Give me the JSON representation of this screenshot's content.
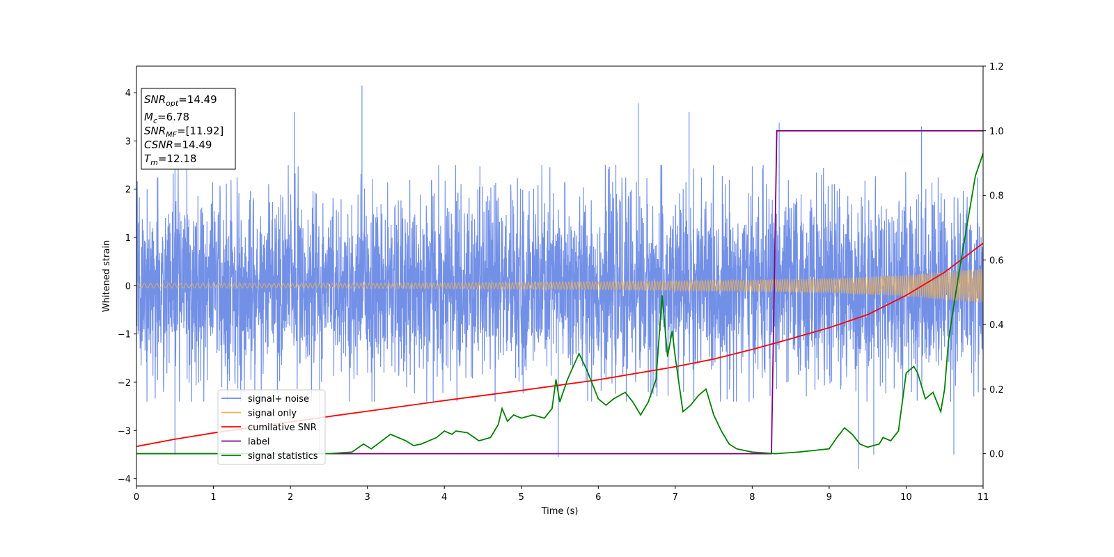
{
  "chart_data": {
    "type": "line",
    "xlabel": "Time (s)",
    "ylabel": "Whitened strain",
    "xlim": [
      0,
      11
    ],
    "ylim": [
      -4.15,
      4.55
    ],
    "y2lim": [
      -0.1,
      1.2
    ],
    "x_ticks": [
      0,
      1,
      2,
      3,
      4,
      5,
      6,
      7,
      8,
      9,
      10,
      11
    ],
    "y_ticks": [
      -4,
      -3,
      -2,
      -1,
      0,
      1,
      2,
      3,
      4
    ],
    "y_tick_labels": [
      "−4",
      "−3",
      "−2",
      "−1",
      "0",
      "1",
      "2",
      "3",
      "4"
    ],
    "y2_ticks": [
      0.0,
      0.2,
      0.4,
      0.6,
      0.8,
      1.0,
      1.2
    ],
    "y2_tick_labels": [
      "0.0",
      "0.2",
      "0.4",
      "0.6",
      "0.8",
      "1.0",
      "1.2"
    ],
    "grid": false,
    "legend_position": "lower-left",
    "legend": [
      "signal+ noise",
      "signal only",
      "cumilative SNR",
      "label",
      "signal statistics"
    ],
    "colors": {
      "noise": "#6b8ae6",
      "signal": "#f5b14a",
      "cumulative_snr": "#ff0000",
      "label": "#800080",
      "statistics": "#008000"
    },
    "series": [
      {
        "name": "signal+ noise",
        "axis": "left",
        "description_of_shape": "dense noise envelope",
        "envelope_upper": [
          [
            0,
            2.2
          ],
          [
            11,
            2.2
          ]
        ],
        "envelope_lower": [
          [
            0,
            -2.0
          ],
          [
            11,
            -2.0
          ]
        ],
        "peaks": [
          [
            0.5,
            3.0
          ],
          [
            2.05,
            3.6
          ],
          [
            2.93,
            4.15
          ],
          [
            6.52,
            3.78
          ],
          [
            7.18,
            3.6
          ],
          [
            8.35,
            3.38
          ],
          [
            10.2,
            3.3
          ]
        ],
        "troughs": [
          [
            0.5,
            -3.5
          ],
          [
            2.38,
            -3.5
          ],
          [
            5.48,
            -3.55
          ],
          [
            9.38,
            -3.8
          ],
          [
            9.58,
            -3.5
          ],
          [
            10.62,
            -3.5
          ]
        ]
      },
      {
        "name": "signal only",
        "axis": "left",
        "amplitude": [
          [
            0,
            0.05
          ],
          [
            2,
            0.05
          ],
          [
            4,
            0.06
          ],
          [
            6,
            0.08
          ],
          [
            8,
            0.12
          ],
          [
            9,
            0.15
          ],
          [
            10,
            0.22
          ],
          [
            11,
            0.36
          ]
        ]
      },
      {
        "name": "cumilative SNR",
        "axis": "left",
        "points": [
          [
            0,
            -3.33
          ],
          [
            0.5,
            -3.18
          ],
          [
            1,
            -3.05
          ],
          [
            2,
            -2.82
          ],
          [
            3,
            -2.6
          ],
          [
            4,
            -2.38
          ],
          [
            5,
            -2.17
          ],
          [
            6,
            -1.95
          ],
          [
            7,
            -1.68
          ],
          [
            7.5,
            -1.52
          ],
          [
            8,
            -1.32
          ],
          [
            8.5,
            -1.1
          ],
          [
            9,
            -0.87
          ],
          [
            9.5,
            -0.6
          ],
          [
            10,
            -0.2
          ],
          [
            10.5,
            0.28
          ],
          [
            11,
            0.88
          ]
        ]
      },
      {
        "name": "label",
        "axis": "right",
        "points": [
          [
            0,
            0.0
          ],
          [
            8.25,
            0.0
          ],
          [
            8.32,
            1.0
          ],
          [
            11,
            1.0
          ]
        ]
      },
      {
        "name": "signal statistics",
        "axis": "right",
        "points": [
          [
            0,
            0.0
          ],
          [
            2.5,
            0.0
          ],
          [
            2.8,
            0.005
          ],
          [
            2.95,
            0.03
          ],
          [
            3.05,
            0.015
          ],
          [
            3.3,
            0.06
          ],
          [
            3.5,
            0.04
          ],
          [
            3.6,
            0.025
          ],
          [
            3.7,
            0.03
          ],
          [
            3.9,
            0.05
          ],
          [
            4.0,
            0.07
          ],
          [
            4.1,
            0.06
          ],
          [
            4.15,
            0.07
          ],
          [
            4.3,
            0.065
          ],
          [
            4.45,
            0.04
          ],
          [
            4.6,
            0.05
          ],
          [
            4.7,
            0.09
          ],
          [
            4.75,
            0.14
          ],
          [
            4.82,
            0.1
          ],
          [
            4.9,
            0.12
          ],
          [
            5.0,
            0.11
          ],
          [
            5.15,
            0.12
          ],
          [
            5.3,
            0.11
          ],
          [
            5.4,
            0.14
          ],
          [
            5.45,
            0.23
          ],
          [
            5.5,
            0.16
          ],
          [
            5.6,
            0.23
          ],
          [
            5.75,
            0.31
          ],
          [
            5.85,
            0.26
          ],
          [
            6.0,
            0.17
          ],
          [
            6.1,
            0.15
          ],
          [
            6.2,
            0.17
          ],
          [
            6.35,
            0.19
          ],
          [
            6.45,
            0.16
          ],
          [
            6.55,
            0.12
          ],
          [
            6.65,
            0.16
          ],
          [
            6.75,
            0.23
          ],
          [
            6.83,
            0.49
          ],
          [
            6.9,
            0.3
          ],
          [
            6.96,
            0.38
          ],
          [
            7.0,
            0.3
          ],
          [
            7.1,
            0.13
          ],
          [
            7.2,
            0.15
          ],
          [
            7.3,
            0.18
          ],
          [
            7.4,
            0.2
          ],
          [
            7.45,
            0.16
          ],
          [
            7.5,
            0.12
          ],
          [
            7.6,
            0.07
          ],
          [
            7.7,
            0.03
          ],
          [
            7.8,
            0.015
          ],
          [
            8.0,
            0.005
          ],
          [
            8.3,
            0.0
          ],
          [
            8.6,
            0.005
          ],
          [
            8.8,
            0.01
          ],
          [
            9.0,
            0.015
          ],
          [
            9.1,
            0.05
          ],
          [
            9.2,
            0.08
          ],
          [
            9.3,
            0.06
          ],
          [
            9.4,
            0.03
          ],
          [
            9.5,
            0.02
          ],
          [
            9.65,
            0.03
          ],
          [
            9.7,
            0.05
          ],
          [
            9.8,
            0.04
          ],
          [
            9.9,
            0.07
          ],
          [
            10.0,
            0.25
          ],
          [
            10.1,
            0.27
          ],
          [
            10.15,
            0.25
          ],
          [
            10.25,
            0.17
          ],
          [
            10.35,
            0.19
          ],
          [
            10.45,
            0.13
          ],
          [
            10.5,
            0.2
          ],
          [
            10.55,
            0.35
          ],
          [
            10.6,
            0.43
          ],
          [
            10.7,
            0.58
          ],
          [
            10.8,
            0.72
          ],
          [
            10.9,
            0.86
          ],
          [
            11.0,
            0.93
          ]
        ]
      }
    ],
    "annotation": {
      "lines": [
        {
          "sym": "SNR",
          "sub": "opt",
          "val": "=14.49"
        },
        {
          "sym": "M",
          "sub": "c",
          "val": "=6.78"
        },
        {
          "sym": "SNR",
          "sub": "MF",
          "val": "=[11.92]"
        },
        {
          "sym": "CSNR",
          "sub": "",
          "val": "=14.49"
        },
        {
          "sym": "T",
          "sub": "m",
          "val": "=12.18"
        }
      ]
    }
  }
}
